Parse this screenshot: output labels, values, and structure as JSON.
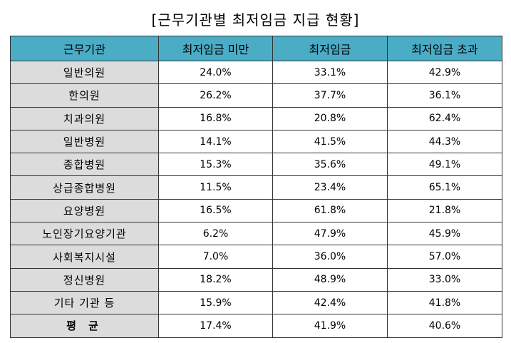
{
  "title": "[근무기관별 최저임금 지급 현황]",
  "headers": [
    "근무기관",
    "최저임금 미만",
    "최저임금",
    "최저임금 초과"
  ],
  "rows": [
    {
      "label": "일반의원",
      "below": "24.0%",
      "at": "33.1%",
      "above": "42.9%"
    },
    {
      "label": "한의원",
      "below": "26.2%",
      "at": "37.7%",
      "above": "36.1%"
    },
    {
      "label": "치과의원",
      "below": "16.8%",
      "at": "20.8%",
      "above": "62.4%"
    },
    {
      "label": "일반병원",
      "below": "14.1%",
      "at": "41.5%",
      "above": "44.3%"
    },
    {
      "label": "종합병원",
      "below": "15.3%",
      "at": "35.6%",
      "above": "49.1%"
    },
    {
      "label": "상급종합병원",
      "below": "11.5%",
      "at": "23.4%",
      "above": "65.1%"
    },
    {
      "label": "요양병원",
      "below": "16.5%",
      "at": "61.8%",
      "above": "21.8%"
    },
    {
      "label": "노인장기요양기관",
      "below": "6.2%",
      "at": "47.9%",
      "above": "45.9%"
    },
    {
      "label": "사회복지시설",
      "below": "7.0%",
      "at": "36.0%",
      "above": "57.0%"
    },
    {
      "label": "정신병원",
      "below": "18.2%",
      "at": "48.9%",
      "above": "33.0%"
    },
    {
      "label": "기타 기관 등",
      "below": "15.9%",
      "at": "42.4%",
      "above": "41.8%"
    }
  ],
  "average": {
    "label": "평 균",
    "below": "17.4%",
    "at": "41.9%",
    "above": "40.6%"
  },
  "colors": {
    "header_bg": "#4bacc6",
    "label_bg": "#dcdcdc",
    "border": "#333333"
  }
}
